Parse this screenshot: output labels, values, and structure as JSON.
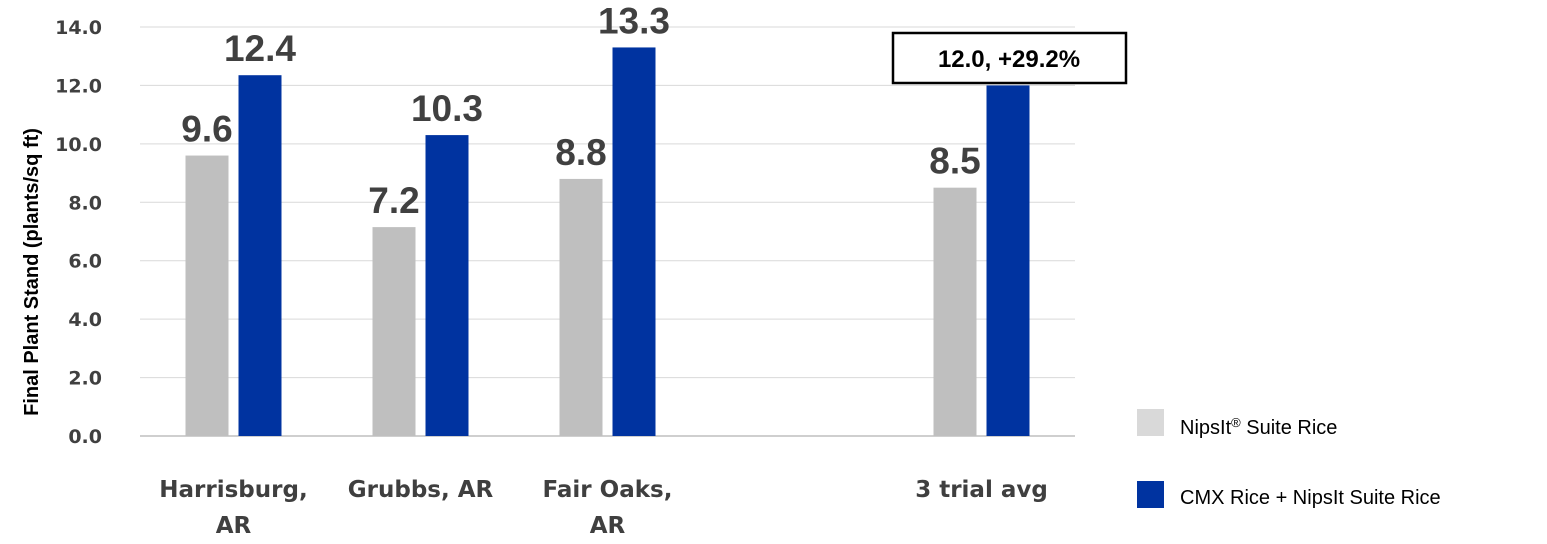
{
  "chart_data": {
    "type": "bar",
    "ylabel": "Final Plant Stand (plants/sq ft)",
    "ylim": [
      0,
      14
    ],
    "yticks": [
      "0.0",
      "2.0",
      "4.0",
      "6.0",
      "8.0",
      "10.0",
      "12.0",
      "14.0"
    ],
    "grid": true,
    "legend_position": "bottom-right",
    "categories": [
      {
        "lines": [
          "Harrisburg,",
          "AR"
        ]
      },
      {
        "lines": [
          "Grubbs, AR"
        ]
      },
      {
        "lines": [
          "Fair Oaks,",
          "AR"
        ]
      },
      {
        "lines": [
          ""
        ]
      },
      {
        "lines": [
          "3 trial avg"
        ]
      }
    ],
    "series": [
      {
        "name": "NipsIt",
        "name_sup": "®",
        "name_rest": " Suite Rice",
        "color": "#bfbfbf",
        "legend_color": "#d9d9d9",
        "values": [
          9.6,
          7.15,
          8.8,
          null,
          8.5
        ],
        "labels": [
          "9.6",
          "7.2",
          "8.8",
          "",
          "8.5"
        ]
      },
      {
        "name": "CMX Rice + NipsIt Suite Rice",
        "color": "#0033a0",
        "legend_color": "#0033a0",
        "values": [
          12.35,
          10.3,
          13.3,
          null,
          12.0
        ],
        "labels": [
          "12.4",
          "10.3",
          "13.3",
          "",
          ""
        ]
      }
    ],
    "annotation": "12.0, +29.2%"
  }
}
